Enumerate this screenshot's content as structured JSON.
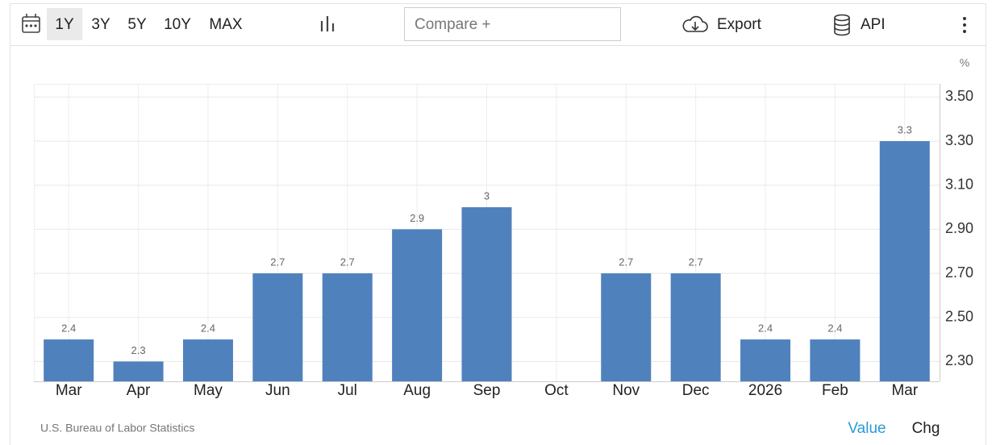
{
  "toolbar": {
    "ranges": [
      "1Y",
      "3Y",
      "5Y",
      "10Y",
      "MAX"
    ],
    "selected_range": "1Y",
    "compare": "Compare +",
    "export": "Export",
    "api": "API"
  },
  "chart_data": {
    "type": "bar",
    "unit": "%",
    "categories": [
      "Mar",
      "Apr",
      "May",
      "Jun",
      "Jul",
      "Aug",
      "Sep",
      "Oct",
      "Nov",
      "Dec",
      "2026",
      "Feb",
      "Mar"
    ],
    "values": [
      2.4,
      2.3,
      2.4,
      2.7,
      2.7,
      2.9,
      3,
      null,
      2.7,
      2.7,
      2.4,
      2.4,
      3.3
    ],
    "color": "#4f81bd",
    "ylim": [
      2.21,
      3.56
    ],
    "yticks": [
      {
        "value": 2.3,
        "label": "2.30"
      },
      {
        "value": 2.5,
        "label": "2.50"
      },
      {
        "value": 2.7,
        "label": "2.70"
      },
      {
        "value": 2.9,
        "label": "2.90"
      },
      {
        "value": 3.1,
        "label": "3.10"
      },
      {
        "value": 3.3,
        "label": "3.30"
      },
      {
        "value": 3.5,
        "label": "3.50"
      }
    ],
    "grid": true
  },
  "footer": {
    "source": "U.S. Bureau of Labor Statistics",
    "tabs": [
      "Value",
      "Chg"
    ],
    "active_tab": "Value"
  }
}
